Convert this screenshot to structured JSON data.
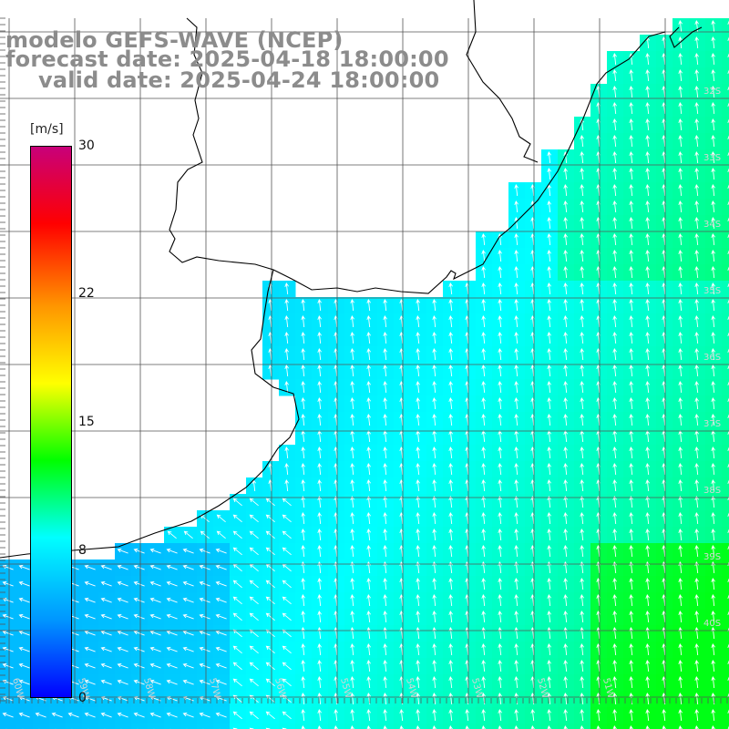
{
  "header": {
    "title": "modelo GEFS-WAVE (NCEP)",
    "forecast": "forecast date: 2025-04-18 18:00:00",
    "valid": "valid date: 2025-04-24 18:00:00"
  },
  "colorbar": {
    "unit": "[m/s]",
    "ticks": [
      "30",
      "22",
      "15",
      "8",
      "0"
    ],
    "tick_values": [
      30,
      22,
      15,
      8,
      0
    ],
    "range": [
      0,
      30
    ],
    "colors": [
      "#0000ff",
      "#0096ff",
      "#00ffff",
      "#00ff00",
      "#ffff00",
      "#ff9600",
      "#ff0000",
      "#c8007a"
    ]
  },
  "map": {
    "lat_labels": [
      "32S",
      "33S",
      "34S",
      "35S",
      "36S",
      "37S",
      "38S",
      "39S",
      "40S"
    ],
    "lon_labels": [
      "60W",
      "59W",
      "58W",
      "57W",
      "56W",
      "55W",
      "54W",
      "53W",
      "52W",
      "51W"
    ],
    "land_color": "#ffffff",
    "arrow_color": "#ffffff",
    "grid_color": "#555555",
    "coast_color": "#000000"
  }
}
